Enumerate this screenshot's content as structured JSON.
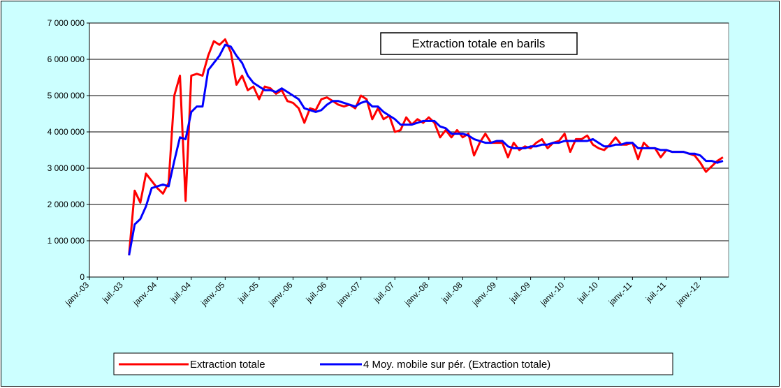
{
  "chart_data": {
    "type": "line",
    "annotation": "Extraction totale en barils",
    "x": [
      "2003-08",
      "2003-09",
      "2003-10",
      "2003-11",
      "2003-12",
      "2004-01",
      "2004-02",
      "2004-03",
      "2004-04",
      "2004-05",
      "2004-06",
      "2004-07",
      "2004-08",
      "2004-09",
      "2004-10",
      "2004-11",
      "2004-12",
      "2005-01",
      "2005-02",
      "2005-03",
      "2005-04",
      "2005-05",
      "2005-06",
      "2005-07",
      "2005-08",
      "2005-09",
      "2005-10",
      "2005-11",
      "2005-12",
      "2006-01",
      "2006-02",
      "2006-03",
      "2006-04",
      "2006-05",
      "2006-06",
      "2006-07",
      "2006-08",
      "2006-09",
      "2006-10",
      "2006-11",
      "2006-12",
      "2007-01",
      "2007-02",
      "2007-03",
      "2007-04",
      "2007-05",
      "2007-06",
      "2007-07",
      "2007-08",
      "2007-09",
      "2007-10",
      "2007-11",
      "2007-12",
      "2008-01",
      "2008-02",
      "2008-03",
      "2008-04",
      "2008-05",
      "2008-06",
      "2008-07",
      "2008-08",
      "2008-09",
      "2008-10",
      "2008-11",
      "2008-12",
      "2009-01",
      "2009-02",
      "2009-03",
      "2009-04",
      "2009-05",
      "2009-06",
      "2009-07",
      "2009-08",
      "2009-09",
      "2009-10",
      "2009-11",
      "2009-12",
      "2010-01",
      "2010-02",
      "2010-03",
      "2010-04",
      "2010-05",
      "2010-06",
      "2010-07",
      "2010-08",
      "2010-09",
      "2010-10",
      "2010-11",
      "2010-12",
      "2011-01",
      "2011-02",
      "2011-03",
      "2011-04",
      "2011-05",
      "2011-06",
      "2011-07",
      "2011-08",
      "2011-09",
      "2011-10",
      "2011-11",
      "2011-12",
      "2012-01",
      "2012-02",
      "2012-03",
      "2012-04",
      "2012-05"
    ],
    "series": [
      {
        "name": "Extraction totale",
        "color": "#ff0000",
        "values": [
          600000,
          2380000,
          2050000,
          2850000,
          2650000,
          2450000,
          2300000,
          2600000,
          5000000,
          5550000,
          2100000,
          5550000,
          5600000,
          5550000,
          6100000,
          6500000,
          6400000,
          6550000,
          6200000,
          5300000,
          5550000,
          5150000,
          5250000,
          4900000,
          5250000,
          5200000,
          5050000,
          5150000,
          4850000,
          4800000,
          4650000,
          4250000,
          4650000,
          4600000,
          4900000,
          4950000,
          4850000,
          4750000,
          4700000,
          4750000,
          4650000,
          5000000,
          4900000,
          4350000,
          4650000,
          4350000,
          4450000,
          4000000,
          4050000,
          4400000,
          4200000,
          4350000,
          4250000,
          4400000,
          4250000,
          3850000,
          4050000,
          3850000,
          4050000,
          3850000,
          3950000,
          3350000,
          3700000,
          3950000,
          3700000,
          3700000,
          3700000,
          3300000,
          3700000,
          3500000,
          3600000,
          3550000,
          3700000,
          3800000,
          3550000,
          3700000,
          3750000,
          3950000,
          3450000,
          3800000,
          3800000,
          3900000,
          3650000,
          3550000,
          3500000,
          3650000,
          3850000,
          3650000,
          3650000,
          3700000,
          3250000,
          3700000,
          3550000,
          3550000,
          3300000,
          3500000,
          3450000,
          3450000,
          3450000,
          3400000,
          3350000,
          3150000,
          2900000,
          3050000,
          3200000,
          3300000
        ]
      },
      {
        "name": "4 Moy. mobile sur pér. (Extraction totale)",
        "color": "#0000ff",
        "values": [
          600000,
          1450000,
          1600000,
          1950000,
          2450000,
          2500000,
          2550000,
          2500000,
          3200000,
          3850000,
          3800000,
          4550000,
          4700000,
          4700000,
          5700000,
          5900000,
          6100000,
          6400000,
          6350000,
          6100000,
          5900000,
          5550000,
          5350000,
          5250000,
          5150000,
          5150000,
          5100000,
          5200000,
          5100000,
          5000000,
          4900000,
          4650000,
          4600000,
          4550000,
          4600000,
          4750000,
          4850000,
          4850000,
          4800000,
          4750000,
          4700000,
          4800000,
          4850000,
          4700000,
          4700000,
          4550000,
          4450000,
          4350000,
          4200000,
          4200000,
          4200000,
          4250000,
          4300000,
          4300000,
          4300000,
          4150000,
          4100000,
          3950000,
          3950000,
          3950000,
          3900000,
          3800000,
          3750000,
          3700000,
          3700000,
          3750000,
          3750000,
          3600000,
          3550000,
          3550000,
          3550000,
          3600000,
          3600000,
          3650000,
          3650000,
          3700000,
          3700000,
          3750000,
          3750000,
          3750000,
          3750000,
          3750000,
          3800000,
          3700000,
          3600000,
          3600000,
          3650000,
          3650000,
          3700000,
          3700000,
          3550000,
          3550000,
          3550000,
          3550000,
          3500000,
          3500000,
          3450000,
          3450000,
          3450000,
          3400000,
          3400000,
          3350000,
          3200000,
          3200000,
          3150000,
          3200000
        ]
      }
    ],
    "xlim": [
      "2003-01",
      "2012-06"
    ],
    "xticks": [
      {
        "value": "2003-01",
        "label": "janv.-03"
      },
      {
        "value": "2003-07",
        "label": "juil.-03"
      },
      {
        "value": "2004-01",
        "label": "janv.-04"
      },
      {
        "value": "2004-07",
        "label": "juil.-04"
      },
      {
        "value": "2005-01",
        "label": "janv.-05"
      },
      {
        "value": "2005-07",
        "label": "juil.-05"
      },
      {
        "value": "2006-01",
        "label": "janv.-06"
      },
      {
        "value": "2006-07",
        "label": "juil.-06"
      },
      {
        "value": "2007-01",
        "label": "janv.-07"
      },
      {
        "value": "2007-07",
        "label": "juil.-07"
      },
      {
        "value": "2008-01",
        "label": "janv.-08"
      },
      {
        "value": "2008-07",
        "label": "juil.-08"
      },
      {
        "value": "2009-01",
        "label": "janv.-09"
      },
      {
        "value": "2009-07",
        "label": "juil.-09"
      },
      {
        "value": "2010-01",
        "label": "janv.-10"
      },
      {
        "value": "2010-07",
        "label": "juil.-10"
      },
      {
        "value": "2011-01",
        "label": "janv.-11"
      },
      {
        "value": "2011-07",
        "label": "juil.-11"
      },
      {
        "value": "2012-01",
        "label": "janv.-12"
      }
    ],
    "ylim": [
      0,
      7000000
    ],
    "yticks": [
      0,
      {
        "value": 1000000,
        "label": "1 000 000"
      },
      {
        "value": 2000000,
        "label": "2 000 000"
      },
      {
        "value": 3000000,
        "label": "3 000 000"
      },
      {
        "value": 4000000,
        "label": "4 000 000"
      },
      {
        "value": 5000000,
        "label": "5 000 000"
      },
      {
        "value": 6000000,
        "label": "6 000 000"
      },
      {
        "value": 7000000,
        "label": "7 000 000"
      }
    ],
    "grid": true,
    "legend": "bottom"
  }
}
